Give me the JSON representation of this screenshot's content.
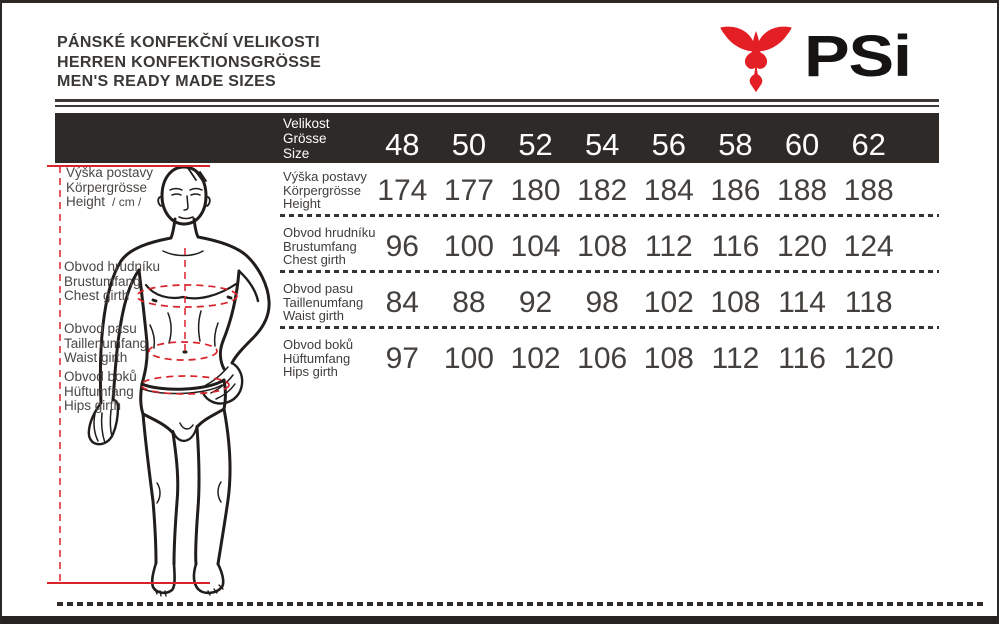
{
  "page": {
    "titles": [
      "PÁNSKÉ KONFEKČNÍ VELIKOSTI",
      "HERREN KONFEKTIONSGRÖSSE",
      "MEN'S READY MADE SIZES"
    ],
    "brand": "PSi"
  },
  "colors": {
    "accent_red": "#e31e24",
    "measure_red": "#d9232a",
    "bar_background": "#2d2a28",
    "ink": "#3b3835"
  },
  "size_header": {
    "labels": [
      "Velikost",
      "Grösse",
      "Size"
    ],
    "sizes": [
      "48",
      "50",
      "52",
      "54",
      "56",
      "58",
      "60",
      "62"
    ]
  },
  "rows": [
    {
      "labels": [
        "Výška postavy",
        "Körpergrösse",
        "Height"
      ],
      "values": [
        "174",
        "177",
        "180",
        "182",
        "184",
        "186",
        "188",
        "188"
      ]
    },
    {
      "labels": [
        "Obvod hrudníku",
        "Brustumfang",
        "Chest girth"
      ],
      "values": [
        "96",
        "100",
        "104",
        "108",
        "112",
        "116",
        "120",
        "124"
      ]
    },
    {
      "labels": [
        "Obvod pasu",
        "Taillenumfang",
        "Waist girth"
      ],
      "values": [
        "84",
        "88",
        "92",
        "98",
        "102",
        "108",
        "114",
        "118"
      ]
    },
    {
      "labels": [
        "Obvod boků",
        "Hüftumfang",
        "Hips girth"
      ],
      "values": [
        "97",
        "100",
        "102",
        "106",
        "108",
        "112",
        "116",
        "120"
      ]
    }
  ],
  "figure_labels": [
    {
      "lines": [
        "Výška postavy",
        "Körpergrösse",
        "Height"
      ],
      "suffix": "/ cm /"
    },
    {
      "lines": [
        "Obvod hrudníku",
        "Brustumfang",
        "Chest girth"
      ],
      "suffix": ""
    },
    {
      "lines": [
        "Obvod pasu",
        "Taillenumfang",
        "Waist girth"
      ],
      "suffix": ""
    },
    {
      "lines": [
        "Obvod boků",
        "Hüftumfang",
        "Hips girth"
      ],
      "suffix": ""
    }
  ]
}
